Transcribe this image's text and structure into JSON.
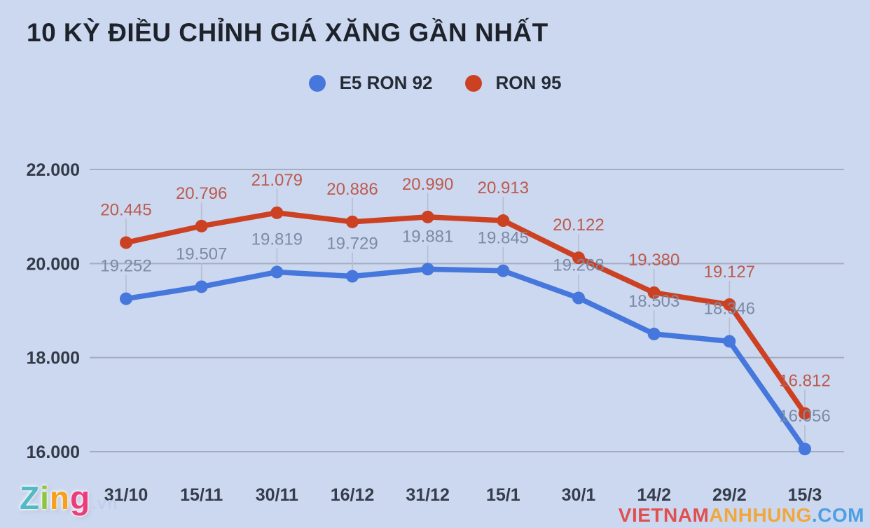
{
  "chart_data": {
    "type": "line",
    "title": "10 KỲ ĐIỀU CHỈNH GIÁ XĂNG GẦN NHẤT",
    "categories": [
      "31/10",
      "15/11",
      "30/11",
      "16/12",
      "31/12",
      "15/1",
      "30/1",
      "14/2",
      "29/2",
      "15/3"
    ],
    "series": [
      {
        "name": "E5 RON 92",
        "color": "#4577dc",
        "label_color": "#7b8aa6",
        "values": [
          19252,
          19507,
          19819,
          19729,
          19881,
          19845,
          19268,
          18503,
          18346,
          16056
        ],
        "labels": [
          "19.252",
          "19.507",
          "19.819",
          "19.729",
          "19.881",
          "19.845",
          "19.268",
          "18.503",
          "18.346",
          "16.056"
        ]
      },
      {
        "name": "RON 95",
        "color": "#cd4123",
        "label_color": "#bc5a4e",
        "values": [
          20445,
          20796,
          21079,
          20886,
          20990,
          20913,
          20122,
          19380,
          19127,
          16812
        ],
        "labels": [
          "20.445",
          "20.796",
          "21.079",
          "20.886",
          "20.990",
          "20.913",
          "20.122",
          "19.380",
          "19.127",
          "16.812"
        ]
      }
    ],
    "ylim": [
      16000,
      22000
    ],
    "yticks": {
      "values": [
        22000,
        20000,
        18000,
        16000
      ],
      "labels": [
        "22.000",
        "20.000",
        "18.000",
        "16.000"
      ]
    },
    "grid": true,
    "legend_position": "top-center"
  },
  "colors": {
    "background": "#ccd8ef",
    "gridline": "#a4adc0",
    "leader_line": "#b6bed0"
  },
  "branding": {
    "logo_letters": [
      {
        "ch": "Z",
        "color": "#52b9c6"
      },
      {
        "ch": "i",
        "color": "#8cc63f"
      },
      {
        "ch": "n",
        "color": "#f8a01c"
      },
      {
        "ch": "g",
        "color": "#ec3c7c"
      }
    ],
    "logo_suffix": ".vn",
    "watermark_segments": [
      {
        "text": "VIETNAM",
        "color": "#e05050"
      },
      {
        "text": "ANHHUNG",
        "color": "#efa73e"
      },
      {
        "text": ".COM",
        "color": "#4e9ee2"
      }
    ]
  }
}
